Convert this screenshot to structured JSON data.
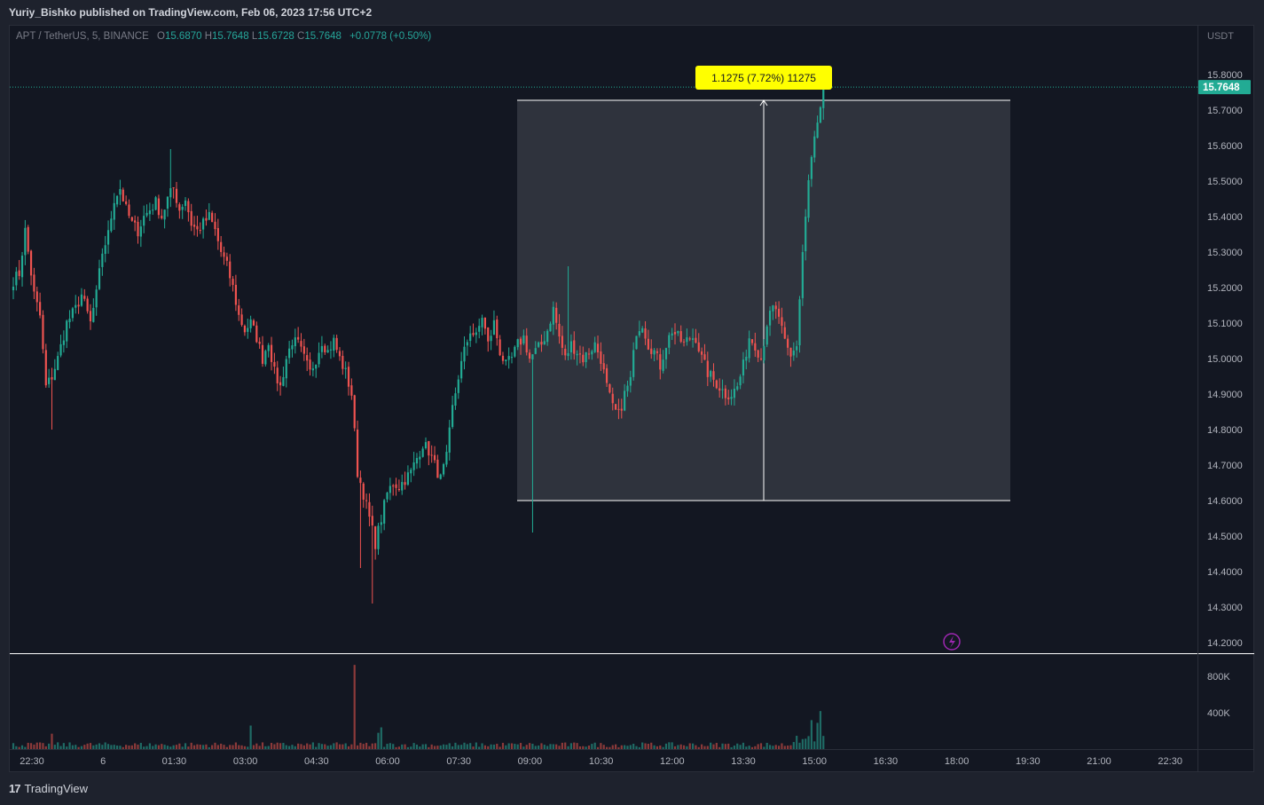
{
  "header": {
    "publisher": "Yuriy_Bishko published on TradingView.com, Feb 06, 2023 17:56 UTC+2"
  },
  "legend": {
    "symbol": "APT / TetherUS, 5, BINANCE",
    "o_label": "O",
    "o_value": "15.6870",
    "h_label": "H",
    "h_value": "15.7648",
    "l_label": "L",
    "l_value": "15.6728",
    "c_label": "C",
    "c_value": "15.7648",
    "change": "+0.0778 (+0.50%)"
  },
  "price_scale": {
    "currency": "USDT",
    "last_price_label": "15.7648",
    "last_price_color": "#22ab94"
  },
  "volume_scale": {
    "ticks": [
      "800K",
      "400K"
    ]
  },
  "measure": {
    "label": "1.1275 (7.72%) 11275",
    "from_price": 14.6,
    "to_price": 15.7275,
    "from_time": "08:40",
    "to_time": "17:50"
  },
  "footer": {
    "brand": "TradingView",
    "mark": "17"
  },
  "colors": {
    "up": "#26a69a",
    "up_bright": "#22ab94",
    "down": "#ef5350",
    "background": "#131722",
    "label_bg": "#ffff00",
    "lightning": "#9c27b0"
  },
  "chart_data": {
    "type": "candlestick",
    "title": "APT / TetherUS, 5, BINANCE",
    "ylim": [
      14.15,
      15.85
    ],
    "y_ticks": [
      "15.8000",
      "15.7000",
      "15.6000",
      "15.5000",
      "15.4000",
      "15.3000",
      "15.2000",
      "15.1000",
      "15.0000",
      "14.9000",
      "14.8000",
      "14.7000",
      "14.6000",
      "14.5000",
      "14.4000",
      "14.3000",
      "14.2000"
    ],
    "x_ticks": [
      "22:30",
      "6",
      "01:30",
      "03:00",
      "04:30",
      "06:00",
      "07:30",
      "09:00",
      "10:30",
      "12:00",
      "13:30",
      "15:00",
      "16:30",
      "18:00",
      "19:30",
      "21:00",
      "22:30"
    ],
    "close_anchors": [
      [
        0,
        15.22
      ],
      [
        2,
        15.24
      ],
      [
        4,
        15.36
      ],
      [
        7,
        15.18
      ],
      [
        9,
        15.12
      ],
      [
        11,
        14.92
      ],
      [
        13,
        14.95
      ],
      [
        15,
        15.0
      ],
      [
        18,
        15.1
      ],
      [
        21,
        15.14
      ],
      [
        23,
        15.18
      ],
      [
        26,
        15.1
      ],
      [
        28,
        15.18
      ],
      [
        30,
        15.3
      ],
      [
        32,
        15.35
      ],
      [
        34,
        15.45
      ],
      [
        36,
        15.48
      ],
      [
        38,
        15.42
      ],
      [
        40,
        15.38
      ],
      [
        42,
        15.36
      ],
      [
        44,
        15.4
      ],
      [
        46,
        15.42
      ],
      [
        48,
        15.44
      ],
      [
        50,
        15.4
      ],
      [
        52,
        15.45
      ],
      [
        54,
        15.48
      ],
      [
        56,
        15.42
      ],
      [
        58,
        15.45
      ],
      [
        60,
        15.38
      ],
      [
        62,
        15.36
      ],
      [
        64,
        15.38
      ],
      [
        66,
        15.4
      ],
      [
        68,
        15.36
      ],
      [
        70,
        15.3
      ],
      [
        72,
        15.26
      ],
      [
        74,
        15.2
      ],
      [
        76,
        15.12
      ],
      [
        78,
        15.08
      ],
      [
        80,
        15.1
      ],
      [
        82,
        15.06
      ],
      [
        84,
        15.0
      ],
      [
        86,
        15.05
      ],
      [
        88,
        14.96
      ],
      [
        90,
        14.92
      ],
      [
        92,
        15.0
      ],
      [
        94,
        15.05
      ],
      [
        96,
        15.04
      ],
      [
        98,
        15.0
      ],
      [
        100,
        14.96
      ],
      [
        102,
        15.0
      ],
      [
        104,
        15.05
      ],
      [
        106,
        15.02
      ],
      [
        108,
        15.05
      ],
      [
        110,
        15.0
      ],
      [
        112,
        14.96
      ],
      [
        114,
        14.9
      ],
      [
        116,
        14.68
      ],
      [
        118,
        14.62
      ],
      [
        120,
        14.55
      ],
      [
        122,
        14.48
      ],
      [
        124,
        14.55
      ],
      [
        126,
        14.62
      ],
      [
        128,
        14.65
      ],
      [
        130,
        14.64
      ],
      [
        132,
        14.66
      ],
      [
        134,
        14.68
      ],
      [
        136,
        14.72
      ],
      [
        138,
        14.76
      ],
      [
        140,
        14.74
      ],
      [
        142,
        14.7
      ],
      [
        144,
        14.66
      ],
      [
        146,
        14.72
      ],
      [
        148,
        14.86
      ],
      [
        150,
        14.95
      ],
      [
        152,
        15.02
      ],
      [
        154,
        15.08
      ],
      [
        156,
        15.06
      ],
      [
        158,
        15.12
      ],
      [
        160,
        15.04
      ],
      [
        162,
        15.1
      ],
      [
        164,
        15.02
      ],
      [
        166,
        14.98
      ],
      [
        168,
        15.0
      ],
      [
        170,
        15.04
      ],
      [
        172,
        15.06
      ],
      [
        174,
        15.0
      ],
      [
        176,
        15.02
      ],
      [
        178,
        15.04
      ],
      [
        180,
        15.08
      ],
      [
        182,
        15.14
      ],
      [
        184,
        15.06
      ],
      [
        186,
        15.0
      ],
      [
        188,
        15.04
      ],
      [
        190,
        15.02
      ],
      [
        192,
        15.0
      ],
      [
        194,
        15.02
      ],
      [
        196,
        15.04
      ],
      [
        198,
        15.0
      ],
      [
        200,
        14.92
      ],
      [
        202,
        14.86
      ],
      [
        204,
        14.84
      ],
      [
        206,
        14.9
      ],
      [
        208,
        14.94
      ],
      [
        210,
        15.08
      ],
      [
        212,
        15.1
      ],
      [
        214,
        15.04
      ],
      [
        216,
        15.02
      ],
      [
        218,
        14.98
      ],
      [
        220,
        15.04
      ],
      [
        222,
        15.08
      ],
      [
        224,
        15.06
      ],
      [
        226,
        15.04
      ],
      [
        228,
        15.06
      ],
      [
        230,
        15.06
      ],
      [
        232,
        15.0
      ],
      [
        234,
        14.96
      ],
      [
        236,
        14.94
      ],
      [
        238,
        14.92
      ],
      [
        240,
        14.9
      ],
      [
        242,
        14.9
      ],
      [
        244,
        14.92
      ],
      [
        246,
        14.98
      ],
      [
        248,
        15.06
      ],
      [
        250,
        15.04
      ],
      [
        252,
        15.0
      ],
      [
        254,
        15.1
      ],
      [
        256,
        15.14
      ],
      [
        258,
        15.12
      ],
      [
        260,
        15.04
      ],
      [
        262,
        15.0
      ],
      [
        264,
        15.04
      ],
      [
        266,
        15.3
      ],
      [
        268,
        15.5
      ],
      [
        270,
        15.62
      ],
      [
        272,
        15.7
      ],
      [
        273,
        15.7648
      ]
    ],
    "volume_ylim": [
      0,
      1000000
    ],
    "volume_spikes": [
      [
        115,
        930000
      ],
      [
        80,
        260000
      ],
      [
        269,
        320000
      ],
      [
        271,
        290000
      ],
      [
        272,
        420000
      ],
      [
        13,
        170000
      ],
      [
        124,
        240000
      ],
      [
        123,
        180000
      ]
    ]
  }
}
